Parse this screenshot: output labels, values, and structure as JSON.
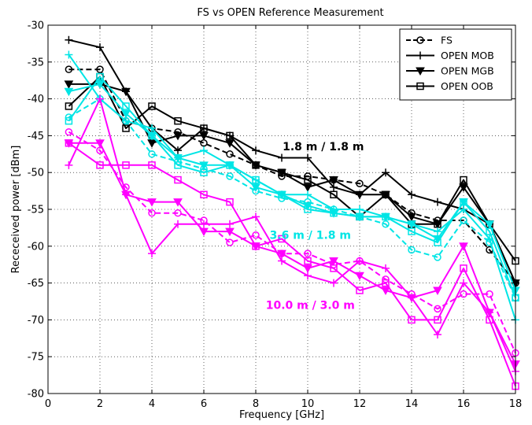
{
  "chart_data": {
    "type": "line",
    "title": "FS vs OPEN Reference Measurement",
    "xlabel": "Frequency [GHz]",
    "ylabel": "Receceived power [dBm]",
    "xlim": [
      0,
      18
    ],
    "ylim": [
      -80,
      -30
    ],
    "xticks": [
      0,
      2,
      4,
      6,
      8,
      10,
      12,
      14,
      16,
      18
    ],
    "yticks": [
      -80,
      -75,
      -70,
      -65,
      -60,
      -55,
      -50,
      -45,
      -40,
      -35,
      -30
    ],
    "grid": true,
    "legend": {
      "position": "top-right",
      "entries": [
        {
          "label": "FS",
          "marker": "circle",
          "dash": true
        },
        {
          "label": "OPEN MOB",
          "marker": "plus",
          "dash": false
        },
        {
          "label": "OPEN MGB",
          "marker": "triangle-down",
          "dash": false
        },
        {
          "label": "OPEN OOB",
          "marker": "square",
          "dash": false
        }
      ]
    },
    "colors": {
      "group1": "#000000",
      "group2": "#00e5e5",
      "group3": "#ff00ff"
    },
    "annotations": [
      {
        "text": "1.8 m / 1.8 m",
        "x": 10.6,
        "y": -47,
        "color": "#000000"
      },
      {
        "text": "3.6 m / 1.8 m",
        "x": 10.1,
        "y": -59,
        "color": "#00e5e5"
      },
      {
        "text": "10.0 m / 3.0 m",
        "x": 10.1,
        "y": -68.5,
        "color": "#ff00ff"
      }
    ],
    "x": [
      0.8,
      2,
      3,
      4,
      5,
      6,
      7,
      8,
      9,
      10,
      11,
      12,
      13,
      14,
      15,
      16,
      17,
      18
    ],
    "series": [
      {
        "name": "FS",
        "group": "1.8 m / 1.8 m",
        "color": "#000000",
        "marker": "circle",
        "dash": true,
        "values": [
          -36,
          -36,
          -43,
          -44,
          -44.5,
          -46,
          -47.5,
          -49,
          -50.5,
          -50.5,
          -51,
          -51.5,
          -53,
          -55.5,
          -56.5,
          -56.5,
          -60.5,
          -65
        ]
      },
      {
        "name": "OPEN MOB",
        "group": "1.8 m / 1.8 m",
        "color": "#000000",
        "marker": "plus",
        "dash": false,
        "values": [
          -32,
          -33,
          -39,
          -44,
          -47,
          -44,
          -45,
          -47,
          -48,
          -48,
          -52,
          -53,
          -50,
          -53,
          -54,
          -55,
          -57,
          -65
        ]
      },
      {
        "name": "OPEN MGB",
        "group": "1.8 m / 1.8 m",
        "color": "#000000",
        "marker": "triangle-down",
        "dash": false,
        "values": [
          -38,
          -38,
          -39,
          -46,
          -45,
          -45,
          -46,
          -49,
          -50,
          -52,
          -51,
          -53,
          -53,
          -56,
          -57,
          -52,
          -57,
          -65
        ]
      },
      {
        "name": "OPEN OOB",
        "group": "1.8 m / 1.8 m",
        "color": "#000000",
        "marker": "square",
        "dash": false,
        "values": [
          -41,
          -37,
          -44,
          -41,
          -43,
          -44,
          -45,
          -49,
          -50,
          -51,
          -53,
          -56,
          -53,
          -57,
          -57,
          -51,
          -57,
          -62
        ]
      },
      {
        "name": "FS",
        "group": "3.6 m / 1.8 m",
        "color": "#00e5e5",
        "marker": "circle",
        "dash": true,
        "values": [
          -42.5,
          -40,
          -43,
          -47.5,
          -48.5,
          -49.5,
          -50.5,
          -52.5,
          -53.5,
          -54,
          -55,
          -56,
          -57,
          -60.5,
          -61.5,
          -56.5,
          -59.5,
          -67
        ]
      },
      {
        "name": "OPEN MOB",
        "group": "3.6 m / 1.8 m",
        "color": "#00e5e5",
        "marker": "plus",
        "dash": false,
        "values": [
          -34,
          -40,
          -43,
          -44,
          -48,
          -47,
          -49,
          -51,
          -53,
          -53,
          -55,
          -55,
          -56,
          -57,
          -58,
          -55,
          -59,
          -70
        ]
      },
      {
        "name": "OPEN MGB",
        "group": "3.6 m / 1.8 m",
        "color": "#00e5e5",
        "marker": "triangle-down",
        "dash": false,
        "values": [
          -39,
          -38,
          -42,
          -45,
          -48,
          -49,
          -49,
          -52,
          -53,
          -54.5,
          -55.5,
          -56,
          -56,
          -57,
          -59,
          -54,
          -57,
          -66
        ]
      },
      {
        "name": "OPEN OOB",
        "group": "3.6 m / 1.8 m",
        "color": "#00e5e5",
        "marker": "square",
        "dash": false,
        "values": [
          -43,
          -37,
          -41,
          -45,
          -49,
          -50,
          -49,
          -51,
          -53,
          -55,
          -55.5,
          -56,
          -56,
          -58,
          -59.5,
          -54,
          -58,
          -67
        ]
      },
      {
        "name": "FS",
        "group": "10.0 m / 3.0 m",
        "color": "#ff00ff",
        "marker": "circle",
        "dash": true,
        "values": [
          -44.5,
          -47,
          -52,
          -55.5,
          -55.5,
          -56.5,
          -59.5,
          -58.5,
          -61,
          -61,
          -62.5,
          -62,
          -64.5,
          -66.5,
          -68.5,
          -66.5,
          -66.5,
          -74.5
        ]
      },
      {
        "name": "OPEN MOB",
        "group": "10.0 m / 3.0 m",
        "color": "#ff00ff",
        "marker": "plus",
        "dash": false,
        "values": [
          -49,
          -40,
          -53,
          -61,
          -57,
          -57,
          -57,
          -56,
          -62,
          -64,
          -65,
          -62,
          -63,
          -67,
          -72,
          -65,
          -69,
          -77
        ]
      },
      {
        "name": "OPEN MGB",
        "group": "10.0 m / 3.0 m",
        "color": "#ff00ff",
        "marker": "triangle-down",
        "dash": false,
        "values": [
          -46,
          -46,
          -53,
          -54,
          -54,
          -58,
          -58,
          -60,
          -61,
          -63,
          -62,
          -64,
          -66,
          -67,
          -66,
          -60,
          -69,
          -76
        ]
      },
      {
        "name": "OPEN OOB",
        "group": "10.0 m / 3.0 m",
        "color": "#ff00ff",
        "marker": "square",
        "dash": false,
        "values": [
          -46,
          -49,
          -49,
          -49,
          -51,
          -53,
          -54,
          -60,
          -59,
          -62,
          -63,
          -66,
          -65,
          -70,
          -70,
          -63,
          -70,
          -79
        ]
      }
    ]
  }
}
